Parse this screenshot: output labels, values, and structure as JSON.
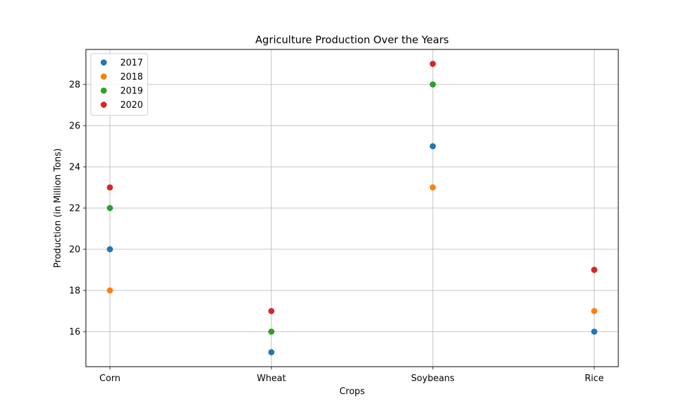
{
  "chart_data": {
    "type": "scatter",
    "title": "Agriculture Production Over the Years",
    "xlabel": "Crops",
    "ylabel": "Production (in Million Tons)",
    "categories": [
      "Corn",
      "Wheat",
      "Soybeans",
      "Rice"
    ],
    "ylim": [
      14.3,
      29.7
    ],
    "yticks": [
      16,
      18,
      20,
      22,
      24,
      26,
      28
    ],
    "grid": true,
    "legend_position": "top-left",
    "series": [
      {
        "name": "2017",
        "color": "#1f77b4",
        "values": [
          20,
          15,
          25,
          16
        ]
      },
      {
        "name": "2018",
        "color": "#ff7f0e",
        "values": [
          18,
          16,
          23,
          17
        ]
      },
      {
        "name": "2019",
        "color": "#2ca02c",
        "values": [
          22,
          16,
          28,
          19
        ]
      },
      {
        "name": "2020",
        "color": "#d62728",
        "values": [
          23,
          17,
          29,
          19
        ]
      }
    ]
  }
}
